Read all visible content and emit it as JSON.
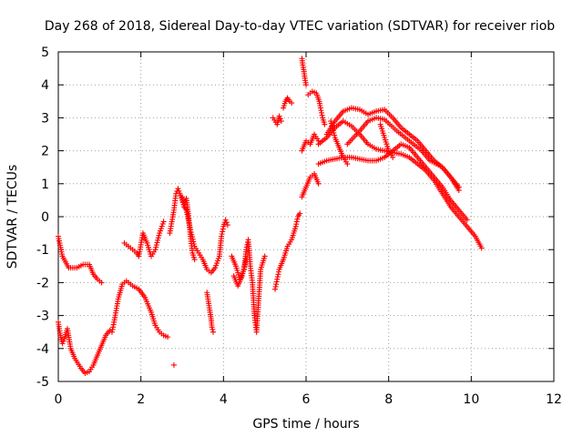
{
  "chart_data": {
    "type": "scatter",
    "title": "Day 268 of 2018, Sidereal Day-to-day VTEC variation (SDTVAR) for receiver riob",
    "xlabel": "GPS time / hours",
    "ylabel": "SDTVAR / TECUs",
    "xlim": [
      0,
      12
    ],
    "ylim": [
      -5,
      5
    ],
    "x_ticks": [
      "0",
      "2",
      "4",
      "6",
      "8",
      "10",
      "12"
    ],
    "y_ticks": [
      "-5",
      "-4",
      "-3",
      "-2",
      "-1",
      "0",
      "1",
      "2",
      "3",
      "4",
      "5"
    ],
    "grid": true,
    "marker": "+",
    "series": [
      {
        "name": "SDTVAR",
        "color": "#ff0000",
        "tracks": [
          {
            "x": [
              0.0,
              0.1,
              0.25,
              0.45,
              0.6,
              0.75,
              0.85,
              0.95,
              1.05
            ],
            "y": [
              -0.6,
              -1.2,
              -1.55,
              -1.55,
              -1.45,
              -1.45,
              -1.75,
              -1.9,
              -2.0
            ]
          },
          {
            "x": [
              0.0,
              0.05,
              0.1,
              0.15,
              0.22,
              0.3,
              0.4,
              0.55,
              0.65,
              0.75,
              0.85,
              0.95,
              1.05,
              1.15,
              1.25,
              1.3,
              1.35,
              1.45,
              1.55,
              1.65,
              1.8,
              1.95,
              2.1,
              2.25,
              2.35,
              2.45,
              2.55,
              2.65
            ],
            "y": [
              -3.2,
              -3.6,
              -3.85,
              -3.7,
              -3.4,
              -4.0,
              -4.3,
              -4.6,
              -4.75,
              -4.7,
              -4.5,
              -4.2,
              -3.9,
              -3.6,
              -3.45,
              -3.5,
              -3.2,
              -2.5,
              -2.05,
              -1.95,
              -2.1,
              -2.2,
              -2.45,
              -2.9,
              -3.3,
              -3.5,
              -3.6,
              -3.65
            ]
          },
          {
            "x": [
              1.6,
              1.7,
              1.8,
              1.9,
              1.95,
              2.05,
              2.15,
              2.25,
              2.35,
              2.45,
              2.55
            ],
            "y": [
              -0.8,
              -0.9,
              -1.0,
              -1.1,
              -1.2,
              -0.5,
              -0.8,
              -1.2,
              -1.0,
              -0.5,
              -0.15
            ]
          },
          {
            "x": [
              2.7,
              2.8,
              2.85,
              2.9,
              3.0,
              3.05,
              3.1,
              3.2,
              3.3,
              3.4,
              3.5,
              3.6,
              3.7,
              3.8,
              3.9,
              3.95,
              4.0,
              4.05,
              4.1
            ],
            "y": [
              -0.5,
              0.2,
              0.7,
              0.85,
              0.5,
              0.3,
              0.2,
              -0.4,
              -0.9,
              -1.1,
              -1.3,
              -1.6,
              -1.7,
              -1.55,
              -1.2,
              -0.6,
              -0.3,
              -0.1,
              -0.25
            ]
          },
          {
            "x": [
              3.0,
              3.05,
              3.1,
              3.15,
              3.2,
              3.25,
              3.3
            ],
            "y": [
              0.6,
              0.3,
              0.55,
              0.1,
              -0.6,
              -1.1,
              -1.3
            ]
          },
          {
            "x": [
              3.6,
              3.65,
              3.7,
              3.72,
              3.75
            ],
            "y": [
              -2.3,
              -2.7,
              -3.1,
              -3.35,
              -3.5
            ]
          },
          {
            "x": [
              4.2,
              4.3,
              4.4,
              4.5,
              4.55,
              4.6,
              4.65,
              4.7,
              4.75,
              4.8,
              4.9,
              5.0
            ],
            "y": [
              -1.2,
              -1.5,
              -1.9,
              -1.6,
              -1.0,
              -0.7,
              -1.5,
              -2.0,
              -3.0,
              -3.5,
              -1.6,
              -1.2
            ]
          },
          {
            "x": [
              4.25,
              4.35,
              4.45,
              4.55
            ],
            "y": [
              -1.8,
              -2.1,
              -1.8,
              -1.3
            ]
          },
          {
            "x": [
              5.25,
              5.3,
              5.35,
              5.45,
              5.55,
              5.65,
              5.75,
              5.8,
              5.85
            ],
            "y": [
              -2.2,
              -1.9,
              -1.6,
              -1.3,
              -0.9,
              -0.7,
              -0.3,
              0.0,
              0.1
            ]
          },
          {
            "x": [
              5.2,
              5.3,
              5.35,
              5.4
            ],
            "y": [
              3.0,
              2.8,
              3.05,
              2.9
            ]
          },
          {
            "x": [
              5.45,
              5.5,
              5.55,
              5.6,
              5.65
            ],
            "y": [
              3.3,
              3.5,
              3.6,
              3.5,
              3.45
            ]
          },
          {
            "x": [
              5.9,
              5.92,
              5.95,
              5.97,
              6.0
            ],
            "y": [
              4.8,
              4.6,
              4.4,
              4.2,
              4.0
            ]
          },
          {
            "x": [
              6.05,
              6.15,
              6.25,
              6.32,
              6.35,
              6.4,
              6.45
            ],
            "y": [
              3.7,
              3.8,
              3.75,
              3.5,
              3.3,
              3.0,
              2.8
            ]
          },
          {
            "x": [
              5.9,
              6.0,
              6.1,
              6.2,
              6.3
            ],
            "y": [
              2.0,
              2.3,
              2.2,
              2.5,
              2.3
            ]
          },
          {
            "x": [
              5.9,
              6.0,
              6.1,
              6.2,
              6.3
            ],
            "y": [
              0.6,
              0.9,
              1.2,
              1.3,
              1.0
            ]
          },
          {
            "x": [
              6.3,
              6.5,
              6.7,
              6.9,
              7.1,
              7.3,
              7.5,
              7.7,
              7.9,
              8.1,
              8.3,
              8.5,
              8.7,
              8.9,
              9.1,
              9.3,
              9.5,
              9.7,
              9.9,
              10.1,
              10.25
            ],
            "y": [
              2.2,
              2.4,
              2.7,
              2.9,
              2.75,
              2.5,
              2.2,
              2.05,
              2.0,
              1.95,
              1.9,
              1.8,
              1.6,
              1.4,
              1.1,
              0.7,
              0.3,
              0.0,
              -0.3,
              -0.6,
              -0.95
            ]
          },
          {
            "x": [
              6.3,
              6.5,
              6.7,
              6.9,
              7.1,
              7.3,
              7.5,
              7.7,
              7.9,
              8.1,
              8.3,
              8.5,
              8.7,
              8.9,
              9.1,
              9.3,
              9.5,
              9.7,
              9.9
            ],
            "y": [
              1.6,
              1.7,
              1.75,
              1.8,
              1.8,
              1.75,
              1.7,
              1.7,
              1.8,
              2.0,
              2.2,
              2.1,
              1.8,
              1.5,
              1.2,
              0.9,
              0.5,
              0.2,
              -0.1
            ]
          },
          {
            "x": [
              6.5,
              6.7,
              6.9,
              7.1,
              7.3,
              7.5,
              7.7,
              7.9,
              8.1,
              8.3,
              8.5,
              8.7,
              8.9,
              9.1,
              9.3,
              9.5,
              9.7
            ],
            "y": [
              2.5,
              2.9,
              3.2,
              3.3,
              3.25,
              3.1,
              3.2,
              3.25,
              3.0,
              2.7,
              2.5,
              2.3,
              2.0,
              1.7,
              1.5,
              1.2,
              0.9
            ]
          },
          {
            "x": [
              7.0,
              7.3,
              7.5,
              7.7,
              7.9,
              8.2,
              8.5,
              8.8,
              9.0,
              9.3,
              9.5,
              9.7
            ],
            "y": [
              2.2,
              2.6,
              2.9,
              3.0,
              2.95,
              2.6,
              2.3,
              2.0,
              1.7,
              1.5,
              1.2,
              0.8
            ]
          },
          {
            "x": [
              6.6,
              6.7,
              6.8,
              6.9,
              7.0
            ],
            "y": [
              2.9,
              2.4,
              2.1,
              1.8,
              1.6
            ]
          },
          {
            "x": [
              7.8,
              7.9,
              8.0,
              8.1
            ],
            "y": [
              2.8,
              2.4,
              2.0,
              1.8
            ]
          }
        ]
      }
    ],
    "isolated_points": [
      {
        "x": 2.8,
        "y": -4.5
      }
    ]
  }
}
